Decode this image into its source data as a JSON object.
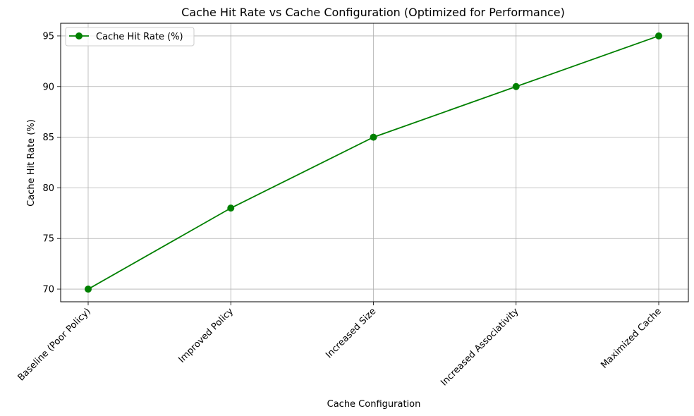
{
  "chart_data": {
    "type": "line",
    "title": "Cache Hit Rate vs Cache Configuration (Optimized for Performance)",
    "xlabel": "Cache Configuration",
    "ylabel": "Cache Hit Rate (%)",
    "categories": [
      "Baseline (Poor Policy)",
      "Improved Policy",
      "Increased Size",
      "Increased Associativity",
      "Maximized Cache"
    ],
    "series": [
      {
        "name": "Cache Hit Rate (%)",
        "values": [
          70,
          78,
          85,
          90,
          95
        ],
        "color": "#008000",
        "marker": "circle"
      }
    ],
    "yticks": [
      70,
      75,
      80,
      85,
      90,
      95
    ],
    "ylim": [
      68.75,
      96.25
    ],
    "grid": true,
    "legend": "top-left"
  }
}
